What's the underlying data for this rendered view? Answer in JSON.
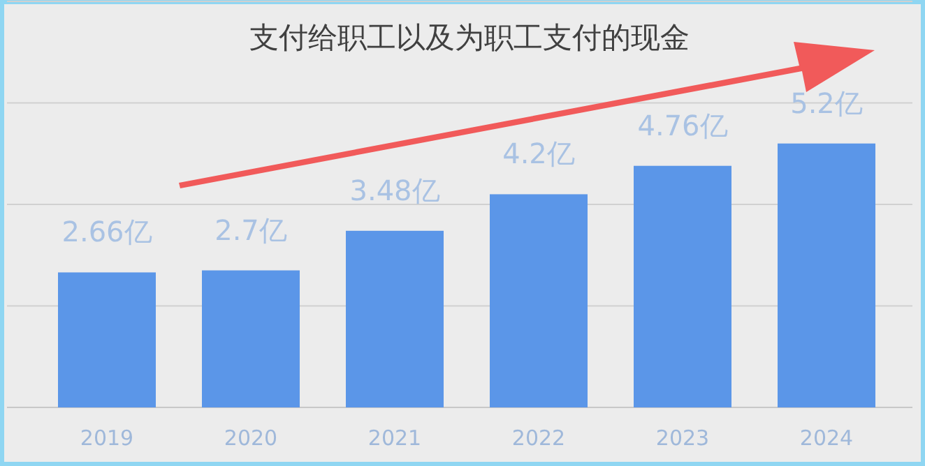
{
  "chart_data": {
    "type": "bar",
    "title": "支付给职工以及为职工支付的现金",
    "categories": [
      "2019",
      "2020",
      "2021",
      "2022",
      "2023",
      "2024"
    ],
    "values": [
      2.66,
      2.7,
      3.48,
      4.2,
      4.76,
      5.2
    ],
    "value_labels": [
      "2.66亿",
      "2.7亿",
      "3.48亿",
      "4.2亿",
      "4.76亿",
      "5.2亿"
    ],
    "color": "#5b96e8",
    "ylim": [
      0,
      8
    ],
    "yticks": [
      {
        "value": 0,
        "label": null
      },
      {
        "value": 2,
        "label": null
      },
      {
        "value": 4,
        "label": null
      },
      {
        "value": 6,
        "label": null
      },
      {
        "value": 8,
        "label": null
      }
    ],
    "tick_labels": "x",
    "grid": "y"
  }
}
